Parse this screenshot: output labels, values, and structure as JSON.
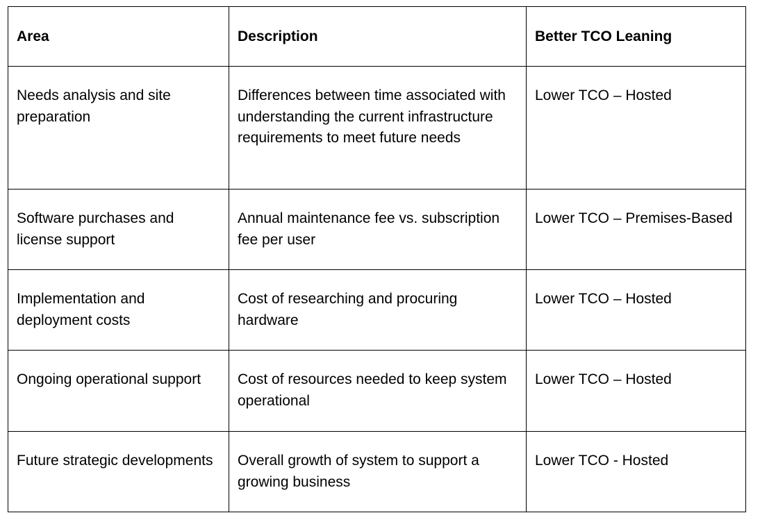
{
  "table": {
    "headers": {
      "area": "Area",
      "description": "Description",
      "leaning": "Better TCO Leaning"
    },
    "rows": [
      {
        "area": "Needs analysis and site preparation",
        "description": "Differences between time associated with understanding the current infrastructure requirements to meet future needs",
        "leaning": "Lower TCO – Hosted"
      },
      {
        "area": "Software purchases and license support",
        "description": "Annual maintenance fee vs. subscription fee per user",
        "leaning": "Lower TCO – Premises-Based"
      },
      {
        "area": "Implementation and deployment costs",
        "description": "Cost of researching and procuring hardware",
        "leaning": "Lower TCO – Hosted"
      },
      {
        "area": "Ongoing operational support",
        "description": "Cost of resources needed to keep system operational",
        "leaning": "Lower TCO – Hosted"
      },
      {
        "area": "Future strategic developments",
        "description": "Overall growth of system to support a growing business",
        "leaning": "Lower TCO - Hosted"
      }
    ]
  }
}
